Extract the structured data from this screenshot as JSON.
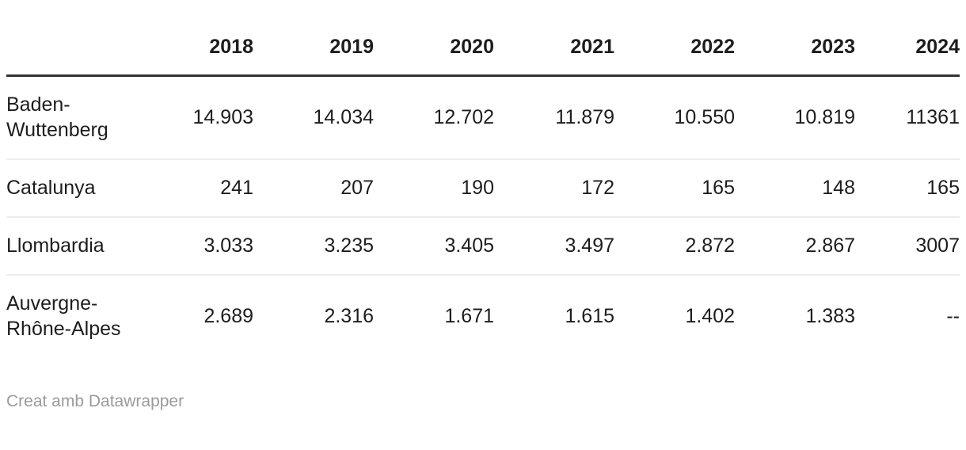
{
  "table": {
    "columns": [
      "2018",
      "2019",
      "2020",
      "2021",
      "2022",
      "2023",
      "2024"
    ],
    "rows": [
      {
        "label": "Baden-Wuttenberg",
        "values": [
          "14.903",
          "14.034",
          "12.702",
          "11.879",
          "10.550",
          "10.819",
          "11361"
        ]
      },
      {
        "label": "Catalunya",
        "values": [
          "241",
          "207",
          "190",
          "172",
          "165",
          "148",
          "165"
        ]
      },
      {
        "label": "Llombardia",
        "values": [
          "3.033",
          "3.235",
          "3.405",
          "3.497",
          "2.872",
          "2.867",
          "3007"
        ]
      },
      {
        "label": "Auvergne-Rhône-Alpes",
        "values": [
          "2.689",
          "2.316",
          "1.671",
          "1.615",
          "1.402",
          "1.383",
          "--"
        ]
      }
    ]
  },
  "footer": {
    "attribution": "Creat amb Datawrapper"
  },
  "colors": {
    "text": "#1d1d1d",
    "header_rule": "#333333",
    "row_divider": "#ececec",
    "footer_text": "#9b9b9b",
    "background": "#ffffff"
  },
  "chart_data": {
    "type": "table",
    "categories": [
      "2018",
      "2019",
      "2020",
      "2021",
      "2022",
      "2023",
      "2024"
    ],
    "series": [
      {
        "name": "Baden-Wuttenberg",
        "values": [
          14903,
          14034,
          12702,
          11879,
          10550,
          10819,
          11361
        ]
      },
      {
        "name": "Catalunya",
        "values": [
          241,
          207,
          190,
          172,
          165,
          148,
          165
        ]
      },
      {
        "name": "Llombardia",
        "values": [
          3033,
          3235,
          3405,
          3497,
          2872,
          2867,
          3007
        ]
      },
      {
        "name": "Auvergne-Rhône-Alpes",
        "values": [
          2689,
          2316,
          1671,
          1615,
          1402,
          1383,
          null
        ]
      }
    ],
    "title": "",
    "xlabel": "",
    "ylabel": "",
    "legend_position": "none",
    "notes": "Datawrapper-style data table; numbers shown with European thousands separators; '--' indicates missing 2024 value"
  }
}
